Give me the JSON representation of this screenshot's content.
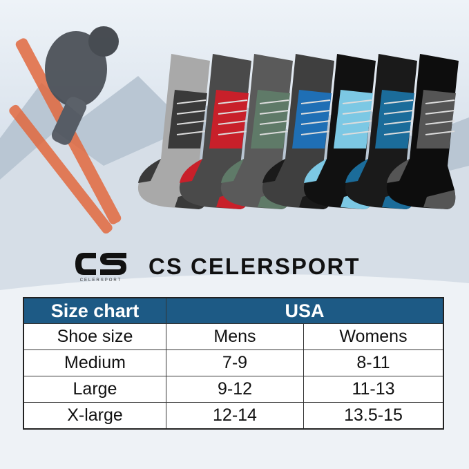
{
  "brand": {
    "name": "CS CELERSPORT",
    "logo_text": "CS",
    "logo_subtext": "CELERSPORT"
  },
  "colors": {
    "header": "#1d5a85"
  },
  "socks": [
    {
      "leg": "#a9a9a9",
      "accent": "#3a3a3a",
      "toe": "#3a3a3a"
    },
    {
      "leg": "#4a4a4a",
      "accent": "#c8202a",
      "toe": "#c8202a"
    },
    {
      "leg": "#5a5a5a",
      "accent": "#5f7a68",
      "toe": "#5f7a68"
    },
    {
      "leg": "#3f3f3f",
      "accent": "#1f6fb5",
      "toe": "#1a1a1a"
    },
    {
      "leg": "#111111",
      "accent": "#7cc8e4",
      "toe": "#7cc8e4"
    },
    {
      "leg": "#1a1a1a",
      "accent": "#1b6c9a",
      "toe": "#1b6c9a"
    },
    {
      "leg": "#0d0d0d",
      "accent": "#555555",
      "toe": "#555555"
    }
  ],
  "size_chart": {
    "header": [
      "Size chart",
      "USA"
    ],
    "columns": [
      "Shoe size",
      "Mens",
      "Womens"
    ],
    "rows": [
      [
        "Medium",
        "7-9",
        "8-11"
      ],
      [
        "Large",
        "9-12",
        "11-13"
      ],
      [
        "X-large",
        "12-14",
        "13.5-15"
      ]
    ]
  }
}
